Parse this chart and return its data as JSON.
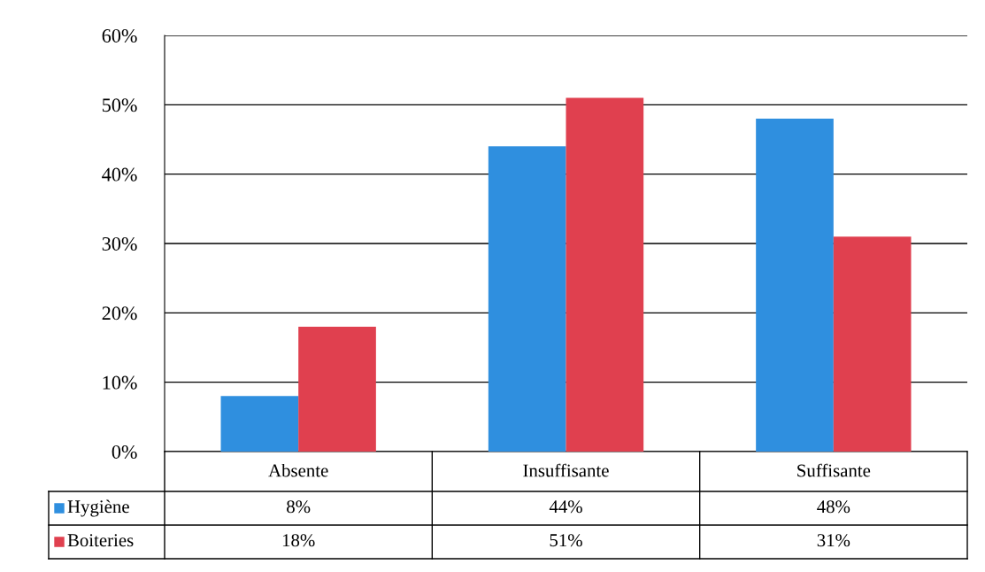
{
  "chart_data": {
    "type": "bar",
    "categories": [
      "Absente",
      "Insuffisante",
      "Suffisante"
    ],
    "series": [
      {
        "name": "Hygiène",
        "color": "#2f8fdf",
        "values": [
          8,
          44,
          48
        ],
        "value_labels": [
          "8%",
          "44%",
          "48%"
        ]
      },
      {
        "name": "Boiteries",
        "color": "#e0404f",
        "values": [
          18,
          51,
          31
        ],
        "value_labels": [
          "18%",
          "51%",
          "31%"
        ]
      }
    ],
    "ylim": [
      0,
      60
    ],
    "yticks": [
      {
        "value": 0,
        "label": "0%"
      },
      {
        "value": 10,
        "label": "10%"
      },
      {
        "value": 20,
        "label": "20%"
      },
      {
        "value": 30,
        "label": "30%"
      },
      {
        "value": 40,
        "label": "40%"
      },
      {
        "value": 50,
        "label": "50%"
      },
      {
        "value": 60,
        "label": "60%"
      }
    ],
    "grid": "y",
    "legend": "bottom left"
  }
}
